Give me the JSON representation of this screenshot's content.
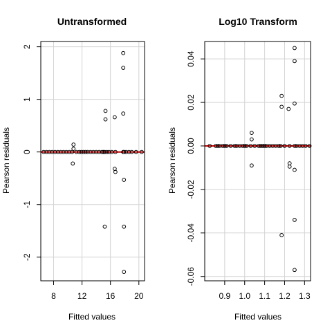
{
  "chart_data": [
    {
      "type": "scatter",
      "title": "Untransformed",
      "xlabel": "Fitted values",
      "ylabel": "Pearson residuals",
      "xlim": [
        6.2,
        20.8
      ],
      "ylim": [
        -2.45,
        2.1
      ],
      "xticks": [
        8,
        12,
        16,
        20
      ],
      "yticks": [
        -2,
        -1,
        0,
        1,
        2
      ],
      "ytick_labels": [
        "-2",
        "-1",
        "0",
        "1",
        "2"
      ],
      "grid": true,
      "reference_line": 0,
      "points": {
        "x": [
          6.6,
          7.0,
          7.4,
          7.8,
          8.2,
          8.6,
          9.0,
          9.4,
          9.8,
          10.2,
          10.6,
          10.8,
          10.8,
          10.7,
          11.2,
          11.6,
          11.9,
          12.2,
          12.5,
          12.8,
          13.2,
          13.6,
          14.0,
          14.4,
          14.8,
          15.0,
          15.2,
          15.3,
          15.3,
          15.5,
          15.2,
          15.8,
          16.2,
          16.6,
          16.6,
          16.7,
          16.7,
          17.8,
          17.8,
          17.8,
          17.9,
          17.9,
          17.9,
          17.9,
          17.8,
          18.2,
          18.6,
          19.0,
          19.6,
          20.4
        ],
        "y": [
          0.0,
          0.0,
          0.0,
          0.0,
          0.0,
          0.0,
          0.0,
          0.0,
          0.0,
          0.0,
          0.0,
          0.14,
          0.06,
          -0.22,
          0.0,
          0.0,
          0.0,
          0.0,
          0.0,
          0.0,
          0.0,
          0.0,
          0.0,
          0.0,
          0.0,
          0.0,
          0.0,
          0.78,
          0.62,
          0.0,
          -1.42,
          0.0,
          0.0,
          0.66,
          -0.32,
          -0.38,
          0.0,
          1.88,
          1.6,
          0.73,
          -0.53,
          -1.42,
          -2.28,
          0.0,
          0.0,
          0.0,
          0.0,
          0.0,
          0.0,
          0.0
        ]
      }
    },
    {
      "type": "scatter",
      "title": "Log10 Transform",
      "xlabel": "Fitted values",
      "ylabel": "Pearson residuals",
      "xlim": [
        0.8,
        1.33
      ],
      "ylim": [
        -0.062,
        0.048
      ],
      "xticks": [
        0.9,
        1.0,
        1.1,
        1.2,
        1.3
      ],
      "xtick_labels": [
        "0.9",
        "1.0",
        "1.1",
        "1.2",
        "1.3"
      ],
      "yticks": [
        -0.06,
        -0.04,
        -0.02,
        0.0,
        0.02,
        0.04
      ],
      "ytick_labels": [
        "-0.06",
        "-0.04",
        "-0.02",
        "0.00",
        "0.02",
        "0.04"
      ],
      "grid": true,
      "reference_line": 0,
      "points": {
        "x": [
          0.825,
          0.855,
          0.865,
          0.875,
          0.89,
          0.9,
          0.91,
          0.93,
          0.95,
          0.96,
          0.975,
          0.99,
          1.0,
          1.01,
          1.03,
          1.035,
          1.035,
          1.035,
          1.05,
          1.07,
          1.08,
          1.09,
          1.1,
          1.11,
          1.125,
          1.14,
          1.155,
          1.17,
          1.18,
          1.185,
          1.185,
          1.185,
          1.2,
          1.22,
          1.225,
          1.225,
          1.225,
          1.25,
          1.25,
          1.25,
          1.25,
          1.25,
          1.25,
          1.25,
          1.26,
          1.275,
          1.29,
          1.305,
          1.325
        ],
        "y": [
          0.0,
          0.0,
          0.0,
          0.0,
          0.0,
          0.0,
          0.0,
          0.0,
          0.0,
          0.0,
          0.0,
          0.0,
          0.0,
          0.0,
          0.0,
          0.006,
          0.003,
          -0.009,
          0.0,
          0.0,
          0.0,
          0.0,
          0.0,
          0.0,
          0.0,
          0.0,
          0.0,
          0.0,
          0.0,
          0.023,
          0.018,
          -0.041,
          0.0,
          0.017,
          -0.008,
          -0.0095,
          0.0,
          0.045,
          0.039,
          0.0195,
          -0.011,
          -0.034,
          -0.057,
          0.0,
          0.0,
          0.0,
          0.0,
          0.0,
          0.0
        ]
      }
    }
  ]
}
